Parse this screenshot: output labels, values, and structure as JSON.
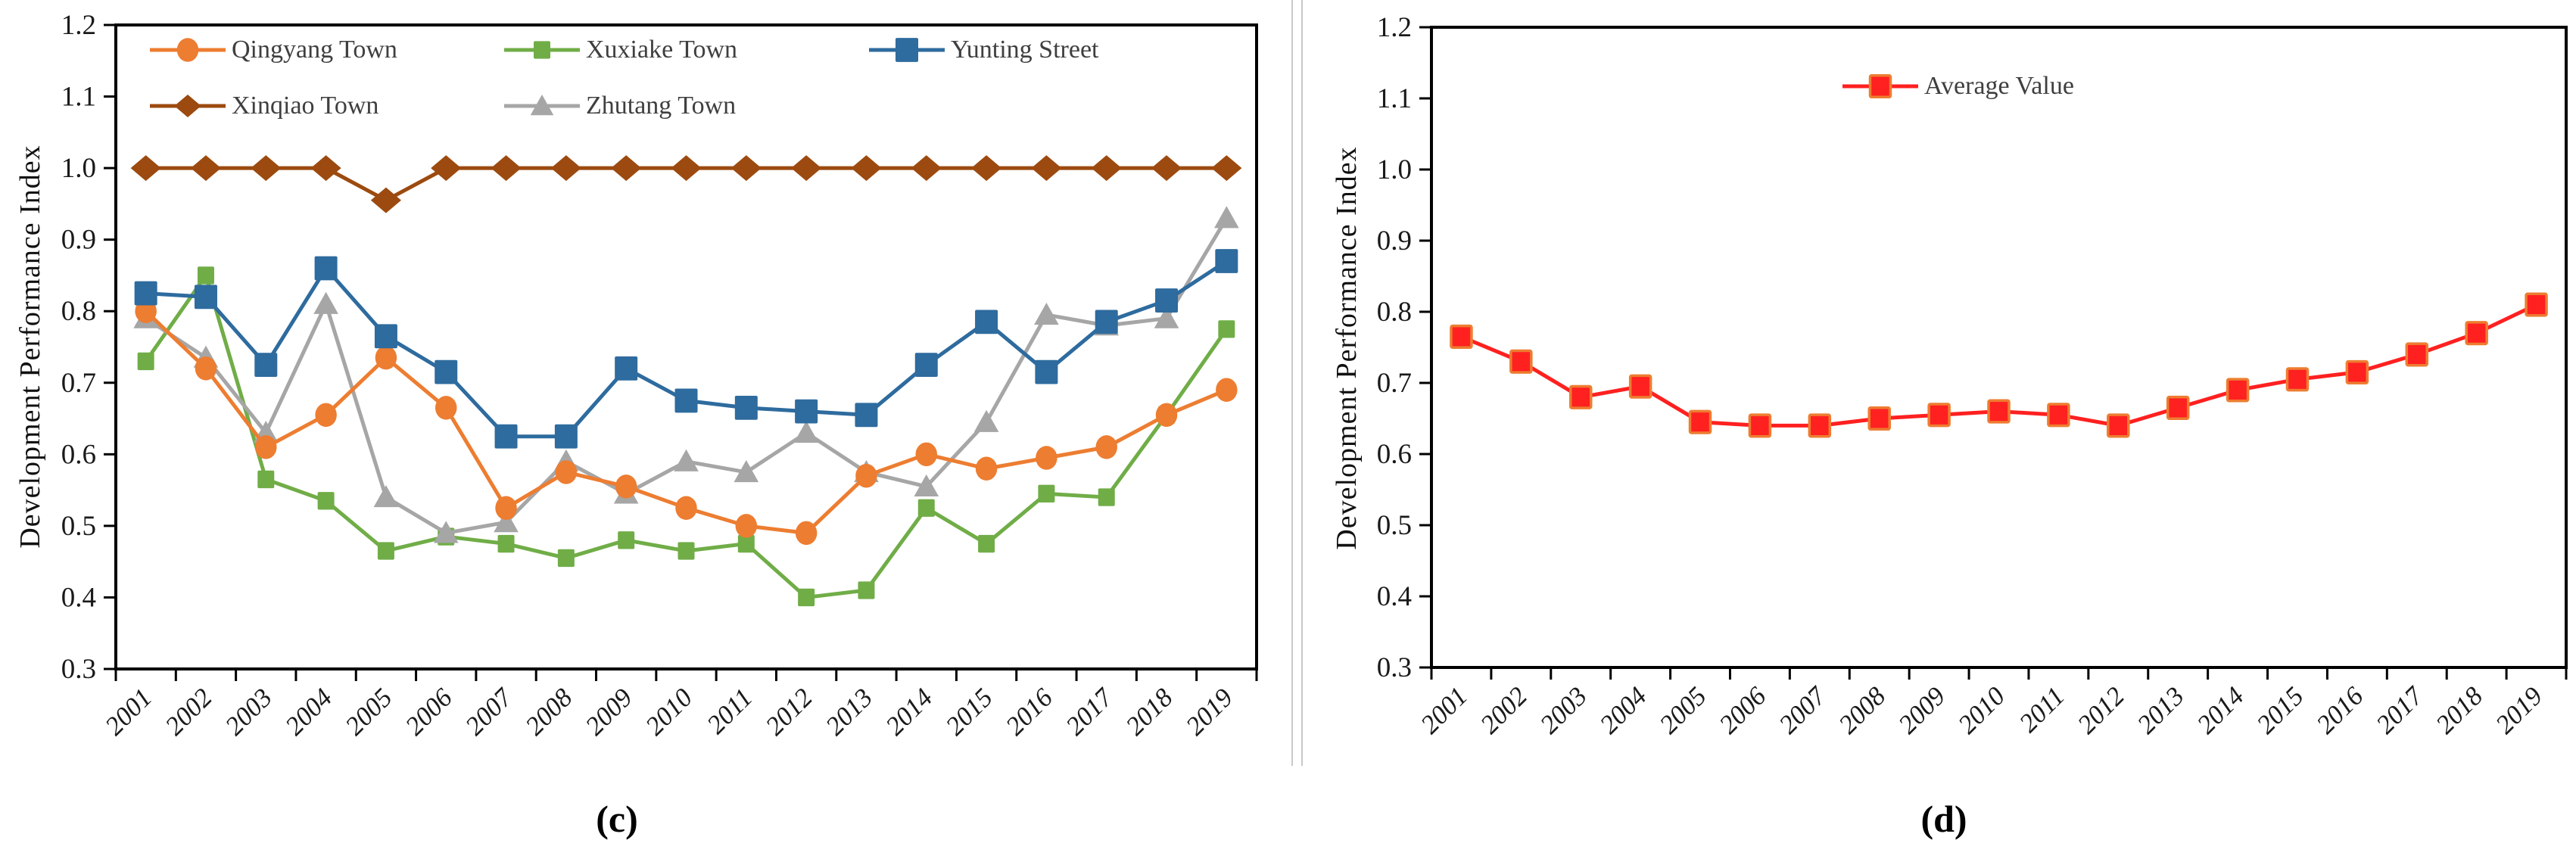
{
  "figure": {
    "left_ylabel": "Development Performance Index",
    "right_ylabel": "Development Performance Index",
    "caption_left": "(c)",
    "caption_right": "(d)"
  },
  "colors": {
    "axis": "#000000",
    "tick_text": "#1a1a1a",
    "legend_text": "#3f3f3f",
    "divider": "#c9c9c9",
    "qingyang_orange": "#ED7D31",
    "xuxiake_green": "#70AD47",
    "yunting_blue": "#2E6B9E",
    "xinqiao_brown": "#9C4A0F",
    "zhutang_gray": "#A6A6A6",
    "average_red": "#FF2020",
    "average_marker_stroke": "#ED7D31"
  },
  "chart_data": [
    {
      "id": "c",
      "type": "line",
      "caption": "(c)",
      "ylabel": "Development Performance Index",
      "ylim": [
        0.3,
        1.2
      ],
      "ytick_step": 0.1,
      "grid": false,
      "legend_position": "inside-top-left",
      "legend_rows": [
        [
          0,
          1,
          2
        ],
        [
          3,
          4
        ]
      ],
      "draw_order": [
        1,
        4,
        0,
        2,
        3
      ],
      "categories": [
        "2001",
        "2002",
        "2003",
        "2004",
        "2005",
        "2006",
        "2007",
        "2008",
        "2009",
        "2010",
        "2011",
        "2012",
        "2013",
        "2014",
        "2015",
        "2016",
        "2017",
        "2018",
        "2019"
      ],
      "series": [
        {
          "name": "Qingyang Town",
          "color": "#ED7D31",
          "marker": "circle",
          "marker_size": 30,
          "values": [
            0.8,
            0.72,
            0.61,
            0.655,
            0.735,
            0.665,
            0.525,
            0.575,
            0.555,
            0.525,
            0.5,
            0.49,
            0.57,
            0.6,
            0.58,
            0.595,
            0.61,
            0.655,
            0.69
          ]
        },
        {
          "name": "Xuxiake Town",
          "color": "#70AD47",
          "marker": "square",
          "marker_size": 22,
          "values": [
            0.73,
            0.85,
            0.565,
            0.535,
            0.465,
            0.485,
            0.475,
            0.455,
            0.48,
            0.465,
            0.475,
            0.4,
            0.41,
            0.525,
            0.475,
            0.545,
            0.54,
            0.655,
            0.775
          ]
        },
        {
          "name": "Yunting Street",
          "color": "#2E6B9E",
          "marker": "square",
          "marker_size": 30,
          "values": [
            0.825,
            0.82,
            0.725,
            0.86,
            0.765,
            0.715,
            0.625,
            0.625,
            0.72,
            0.675,
            0.665,
            0.66,
            0.655,
            0.725,
            0.785,
            0.715,
            0.785,
            0.815,
            0.87
          ]
        },
        {
          "name": "Xinqiao Town",
          "color": "#9C4A0F",
          "marker": "diamond",
          "marker_size": 34,
          "values": [
            1.0,
            1.0,
            1.0,
            1.0,
            0.955,
            1.0,
            1.0,
            1.0,
            1.0,
            1.0,
            1.0,
            1.0,
            1.0,
            1.0,
            1.0,
            1.0,
            1.0,
            1.0,
            1.0
          ]
        },
        {
          "name": "Zhutang Town",
          "color": "#A6A6A6",
          "marker": "triangle",
          "marker_size": 32,
          "values": [
            0.79,
            0.735,
            0.63,
            0.81,
            0.54,
            0.49,
            0.505,
            0.59,
            0.545,
            0.59,
            0.575,
            0.63,
            0.575,
            0.555,
            0.645,
            0.795,
            0.78,
            0.79,
            0.93
          ]
        }
      ]
    },
    {
      "id": "d",
      "type": "line",
      "caption": "(d)",
      "ylabel": "Development Performance Index",
      "ylim": [
        0.3,
        1.2
      ],
      "ytick_step": 0.1,
      "grid": false,
      "legend_position": "inside-top-center",
      "legend_rows": [
        [
          0
        ]
      ],
      "draw_order": [
        0
      ],
      "categories": [
        "2001",
        "2002",
        "2003",
        "2004",
        "2005",
        "2006",
        "2007",
        "2008",
        "2009",
        "2010",
        "2011",
        "2012",
        "2013",
        "2014",
        "2015",
        "2016",
        "2017",
        "2018",
        "2019"
      ],
      "series": [
        {
          "name": "Average Value",
          "color": "#FF2020",
          "marker": "square",
          "marker_size": 27,
          "marker_stroke": "#ED7D31",
          "values": [
            0.765,
            0.73,
            0.68,
            0.695,
            0.645,
            0.64,
            0.64,
            0.65,
            0.655,
            0.66,
            0.655,
            0.64,
            0.665,
            0.69,
            0.705,
            0.715,
            0.74,
            0.77,
            0.81
          ]
        }
      ]
    }
  ]
}
